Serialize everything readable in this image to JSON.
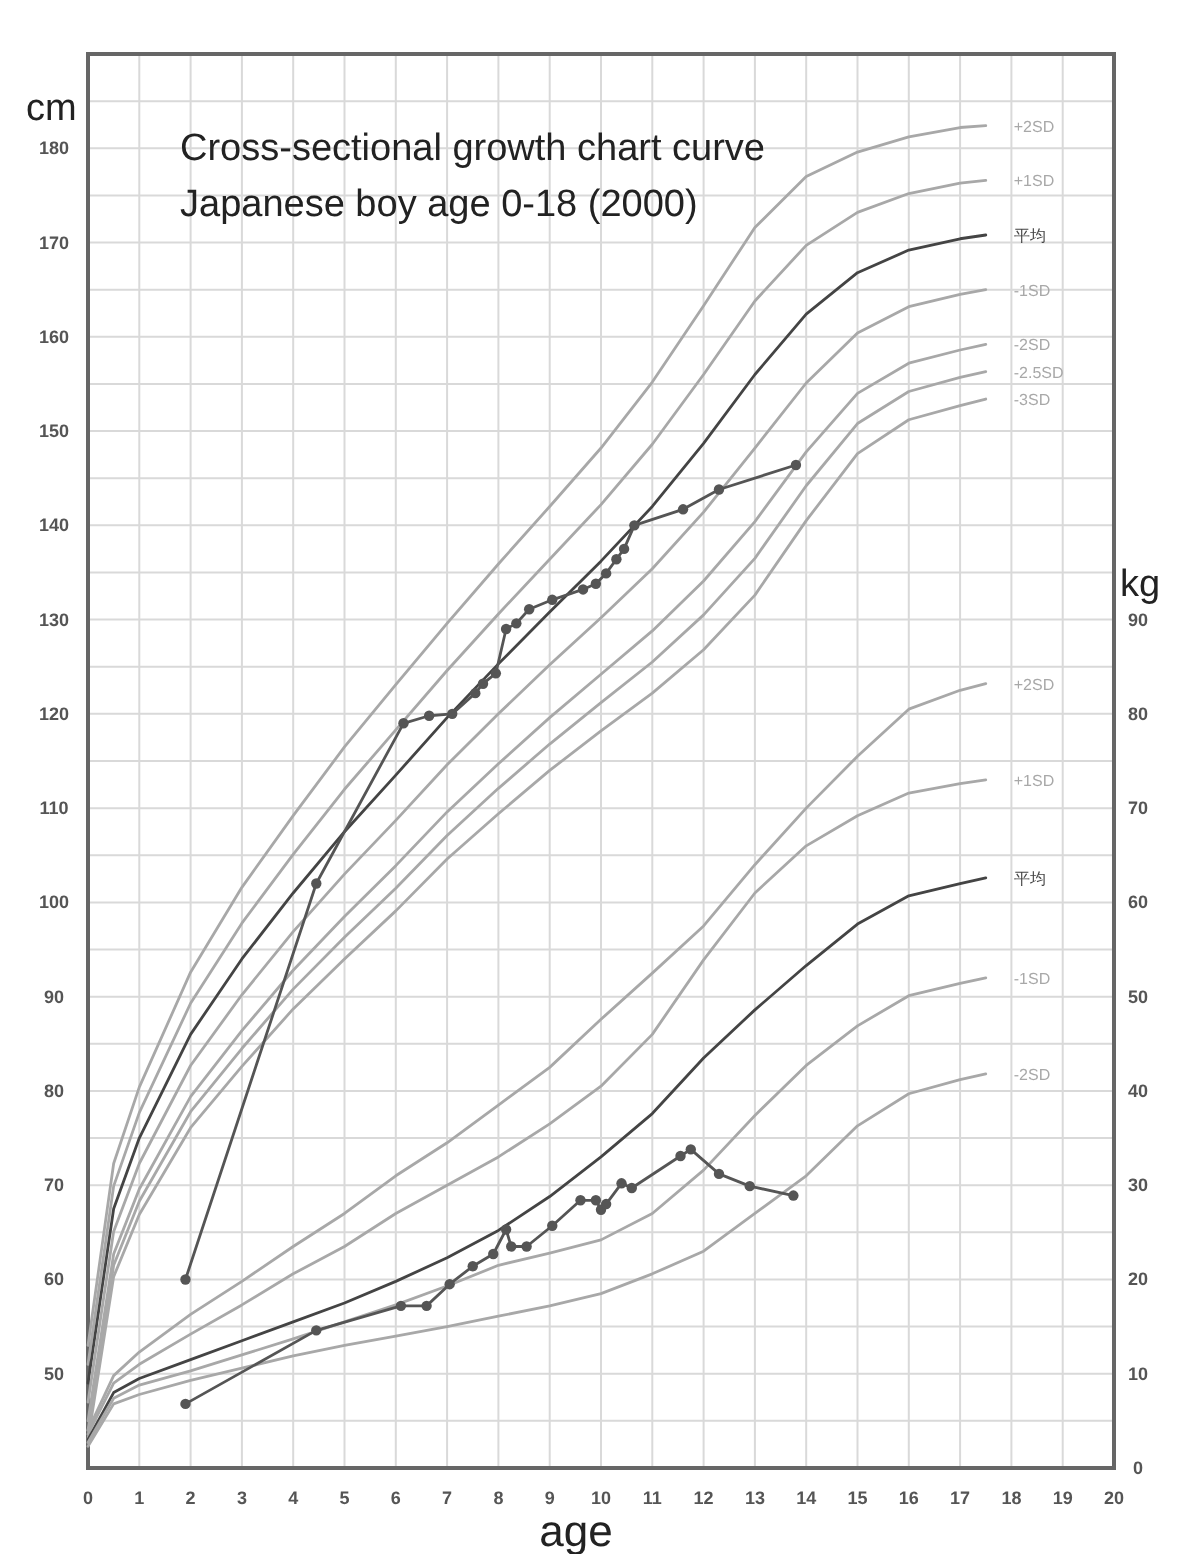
{
  "chart_data": {
    "type": "line",
    "title": "Cross-sectional growth chart curve",
    "subtitle": "Japanese boy age 0-18 (2000)",
    "xlabel": "age",
    "ylabel": "cm",
    "y2label": "kg",
    "xlim": [
      0,
      20
    ],
    "xticks": [
      0,
      1,
      2,
      3,
      4,
      5,
      6,
      7,
      8,
      9,
      10,
      11,
      12,
      13,
      14,
      15,
      16,
      17,
      18,
      19,
      20
    ],
    "ylim": [
      40,
      190
    ],
    "yticks": [
      {
        "value": 45,
        "label": null
      },
      50,
      {
        "value": 55,
        "label": null
      },
      60,
      {
        "value": 65,
        "label": null
      },
      70,
      {
        "value": 75,
        "label": null
      },
      80,
      {
        "value": 85,
        "label": null
      },
      90,
      {
        "value": 95,
        "label": null
      },
      100,
      {
        "value": 105,
        "label": null
      },
      110,
      {
        "value": 115,
        "label": null
      },
      120,
      {
        "value": 125,
        "label": null
      },
      130,
      {
        "value": 135,
        "label": null
      },
      140,
      {
        "value": 145,
        "label": null
      },
      150,
      {
        "value": 155,
        "label": null
      },
      160,
      {
        "value": 165,
        "label": null
      },
      170,
      {
        "value": 175,
        "label": null
      },
      180,
      {
        "value": 185,
        "label": null
      }
    ],
    "y2lim": [
      0,
      150
    ],
    "y2ticks": [
      0,
      10,
      20,
      30,
      40,
      50,
      60,
      70,
      80,
      90
    ],
    "grid": true,
    "marker": "none",
    "line_style": "solid",
    "series": [
      {
        "name": "+2SD",
        "color": "#a8a8a8",
        "x": [
          0,
          0.5,
          1,
          2,
          3,
          4,
          5,
          6,
          7,
          8,
          9,
          10,
          11,
          12,
          13,
          14,
          15,
          16,
          17,
          17.5
        ],
        "values": [
          53,
          72.3,
          80.4,
          92.6,
          101.6,
          109.2,
          116.5,
          123.1,
          129.6,
          135.9,
          142,
          148.2,
          155.2,
          163.3,
          171.6,
          177,
          179.6,
          181.2,
          182.2,
          182.4
        ]
      },
      {
        "name": "+1SD",
        "color": "#a8a8a8",
        "x": [
          0,
          0.5,
          1,
          2,
          3,
          4,
          5,
          6,
          7,
          8,
          9,
          10,
          11,
          12,
          13,
          14,
          15,
          16,
          17,
          17.5
        ],
        "values": [
          51,
          69.9,
          77.7,
          89.3,
          97.8,
          105.1,
          112,
          118.3,
          124.6,
          130.6,
          136.4,
          142.2,
          148.6,
          156,
          163.8,
          169.7,
          173.2,
          175.2,
          176.3,
          176.6
        ]
      },
      {
        "name": "平均",
        "color": "#444444",
        "x": [
          0,
          0.5,
          1,
          2,
          3,
          4,
          5,
          6,
          7,
          8,
          9,
          10,
          11,
          12,
          13,
          14,
          15,
          16,
          17,
          17.5
        ],
        "values": [
          49,
          67.5,
          75,
          86,
          94,
          101,
          107.5,
          113.5,
          119.6,
          125.3,
          130.8,
          136.2,
          142,
          148.7,
          156,
          162.4,
          166.8,
          169.2,
          170.4,
          170.8
        ]
      },
      {
        "name": "-1SD",
        "color": "#a8a8a8",
        "x": [
          0,
          0.5,
          1,
          2,
          3,
          4,
          5,
          6,
          7,
          8,
          9,
          10,
          11,
          12,
          13,
          14,
          15,
          16,
          17,
          17.5
        ],
        "values": [
          47,
          65.1,
          72.3,
          82.7,
          90.2,
          96.9,
          103,
          108.7,
          114.6,
          120,
          125.2,
          130.2,
          135.4,
          141.4,
          148.2,
          155.1,
          160.4,
          163.2,
          164.5,
          165
        ]
      },
      {
        "name": "-2SD",
        "color": "#a8a8a8",
        "x": [
          0,
          0.5,
          1,
          2,
          3,
          4,
          5,
          6,
          7,
          8,
          9,
          10,
          11,
          12,
          13,
          14,
          15,
          16,
          17,
          17.5
        ],
        "values": [
          45,
          62.7,
          69.6,
          79.4,
          86.4,
          92.8,
          98.5,
          103.9,
          109.6,
          114.7,
          119.6,
          124.2,
          128.8,
          134.1,
          140.4,
          147.8,
          154,
          157.2,
          158.6,
          159.2
        ]
      },
      {
        "name": "-2.5SD",
        "color": "#a8a8a8",
        "x": [
          0,
          0.5,
          1,
          2,
          3,
          4,
          5,
          6,
          7,
          8,
          9,
          10,
          11,
          12,
          13,
          14,
          15,
          16,
          17,
          17.5
        ],
        "values": [
          44,
          61.5,
          68.3,
          77.8,
          84.5,
          90.8,
          96.3,
          101.5,
          107.1,
          112.1,
          116.8,
          121.2,
          125.5,
          130.5,
          136.5,
          144.2,
          150.8,
          154.2,
          155.7,
          156.3
        ]
      },
      {
        "name": "-3SD",
        "color": "#a8a8a8",
        "x": [
          0,
          0.5,
          1,
          2,
          3,
          4,
          5,
          6,
          7,
          8,
          9,
          10,
          11,
          12,
          13,
          14,
          15,
          16,
          17,
          17.5
        ],
        "values": [
          43,
          60.3,
          66.9,
          76.1,
          82.6,
          88.7,
          94,
          99.1,
          104.6,
          109.4,
          114,
          118.2,
          122.2,
          126.8,
          132.6,
          140.5,
          147.6,
          151.2,
          152.7,
          153.4
        ]
      },
      {
        "name": "+2SD",
        "axis": "y2",
        "color": "#a8a8a8",
        "x": [
          0,
          0.5,
          1,
          2,
          3,
          4,
          5,
          6,
          7,
          8,
          9,
          10,
          11,
          12,
          13,
          14,
          15,
          16,
          17,
          17.5
        ],
        "values": [
          4,
          9.8,
          12.3,
          16.3,
          19.8,
          23.5,
          27,
          31,
          34.5,
          38.5,
          42.5,
          47.6,
          52.5,
          57.5,
          64,
          70,
          75.5,
          80.5,
          82.5,
          83.2
        ]
      },
      {
        "name": "+1SD",
        "axis": "y2",
        "color": "#a8a8a8",
        "x": [
          0,
          0.5,
          1,
          2,
          3,
          4,
          5,
          6,
          7,
          8,
          9,
          10,
          11,
          12,
          13,
          14,
          15,
          16,
          17,
          17.5
        ],
        "values": [
          3.6,
          9,
          11,
          14.2,
          17.3,
          20.6,
          23.5,
          27,
          30,
          33,
          36.5,
          40.5,
          46,
          53.9,
          61,
          66,
          69.2,
          71.6,
          72.6,
          73
        ]
      },
      {
        "name": "平均",
        "axis": "y2",
        "color": "#444444",
        "x": [
          0,
          0.5,
          1,
          2,
          3,
          4,
          5,
          6,
          7,
          8,
          9,
          10,
          11,
          12,
          13,
          14,
          15,
          16,
          17,
          17.5
        ],
        "values": [
          3,
          8,
          9.5,
          11.5,
          13.5,
          15.5,
          17.5,
          19.8,
          22.3,
          25.2,
          28.8,
          33,
          37.6,
          43.5,
          48.6,
          53.3,
          57.7,
          60.7,
          62,
          62.6
        ]
      },
      {
        "name": "-1SD",
        "axis": "y2",
        "color": "#a8a8a8",
        "x": [
          0,
          0.5,
          1,
          2,
          3,
          4,
          5,
          6,
          7,
          8,
          9,
          10,
          11,
          12,
          13,
          14,
          15,
          16,
          17,
          17.5
        ],
        "values": [
          2.7,
          7.4,
          8.8,
          10.3,
          12,
          13.7,
          15.5,
          17.3,
          19.3,
          21.5,
          22.8,
          24.2,
          27,
          31.6,
          37.4,
          42.7,
          46.9,
          50.1,
          51.4,
          52
        ]
      },
      {
        "name": "-2SD",
        "axis": "y2",
        "color": "#a8a8a8",
        "x": [
          0,
          0.5,
          1,
          2,
          3,
          4,
          5,
          6,
          7,
          8,
          9,
          10,
          11,
          12,
          13,
          14,
          15,
          16,
          17,
          17.5
        ],
        "values": [
          2.3,
          6.8,
          7.8,
          9.3,
          10.6,
          11.9,
          13,
          14,
          15,
          16.1,
          17.2,
          18.5,
          20.6,
          23,
          27,
          31,
          36.3,
          39.7,
          41.2,
          41.8
        ]
      },
      {
        "color": "#555555",
        "marker": "circle",
        "x": [
          1.9,
          4.45,
          6.15,
          6.65,
          7.1,
          7.55,
          7.7,
          7.95,
          8.15,
          8.35,
          8.6,
          9.05,
          9.65,
          9.9,
          10.1,
          10.3,
          10.45,
          10.65,
          11.6,
          12.3,
          13.8
        ],
        "values": [
          60,
          102,
          119,
          119.8,
          120,
          122.2,
          123.2,
          124.3,
          129,
          129.6,
          131.1,
          132.1,
          133.2,
          133.8,
          134.9,
          136.4,
          137.5,
          140,
          141.7,
          143.8,
          146.4
        ]
      },
      {
        "color": "#555555",
        "marker": "circle",
        "axis": "y2",
        "x": [
          1.9,
          4.45,
          6.1,
          6.6,
          7.05,
          7.5,
          7.9,
          8.15,
          8.25,
          8.55,
          9.05,
          9.6,
          9.9,
          10,
          10.1,
          10.4,
          10.6,
          11.55,
          11.75,
          12.3,
          12.9,
          13.75
        ],
        "values": [
          6.8,
          14.6,
          17.2,
          17.2,
          19.5,
          21.4,
          22.7,
          25.3,
          23.5,
          23.5,
          25.7,
          28.4,
          28.4,
          27.4,
          28,
          30.2,
          29.7,
          33.1,
          33.8,
          31.2,
          29.9,
          28.9
        ]
      }
    ]
  }
}
